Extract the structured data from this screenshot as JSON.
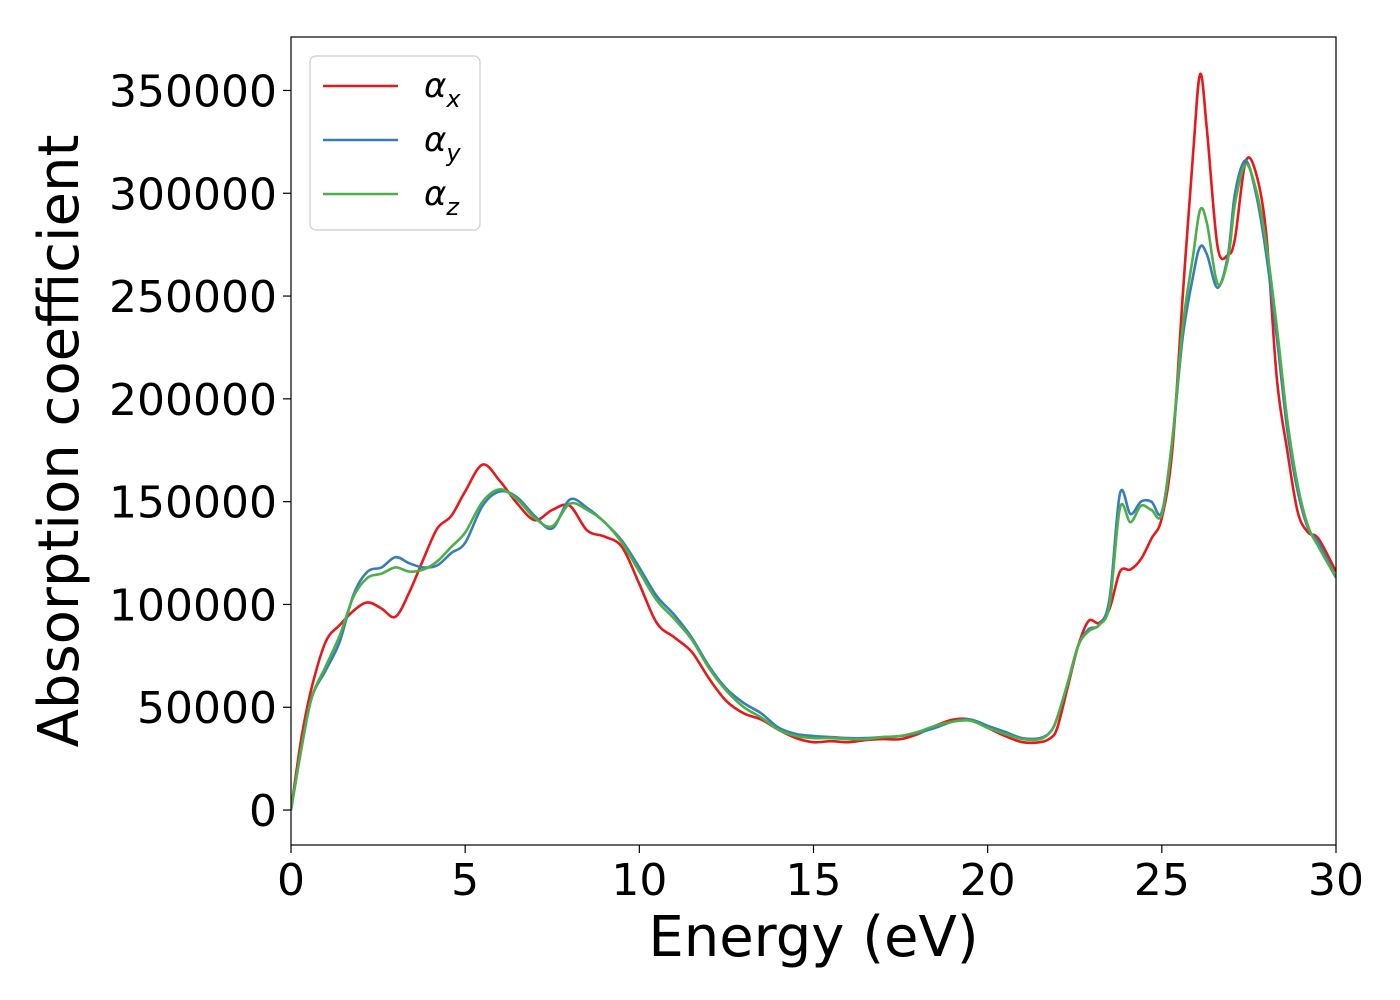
{
  "chart_data": {
    "type": "line",
    "xlabel": "Energy (eV)",
    "ylabel": "Absorption coefficient",
    "xlim": [
      0,
      30
    ],
    "ylim": [
      -17000,
      376000
    ],
    "xticks": [
      0,
      5,
      10,
      15,
      20,
      25,
      30
    ],
    "yticks": [
      0,
      50000,
      100000,
      150000,
      200000,
      250000,
      300000,
      350000
    ],
    "grid": false,
    "legend_position": "top-left",
    "x": [
      0,
      0.3,
      0.6,
      1.0,
      1.4,
      1.8,
      2.2,
      2.6,
      3.0,
      3.4,
      3.8,
      4.2,
      4.6,
      5.0,
      5.5,
      6.0,
      6.5,
      7.0,
      7.5,
      8.0,
      8.5,
      9.0,
      9.5,
      10.0,
      10.5,
      11.0,
      11.5,
      12.0,
      12.5,
      13.0,
      13.5,
      14.0,
      14.5,
      15.0,
      15.5,
      16.0,
      16.5,
      17.0,
      17.5,
      18.0,
      18.5,
      19.0,
      19.5,
      20.0,
      20.5,
      21.0,
      21.5,
      21.8,
      22.0,
      22.3,
      22.6,
      22.9,
      23.2,
      23.5,
      23.8,
      24.1,
      24.4,
      24.7,
      25.0,
      25.3,
      25.6,
      25.9,
      26.1,
      26.3,
      26.6,
      26.9,
      27.1,
      27.4,
      27.7,
      28.0,
      28.3,
      28.6,
      28.9,
      29.2,
      29.5,
      30.0
    ],
    "series": [
      {
        "name": "αx",
        "label_base": "α",
        "label_sub": "x",
        "color": "#e41a1c",
        "values": [
          0,
          35000,
          60000,
          82000,
          90000,
          97000,
          101000,
          98000,
          94000,
          106000,
          122000,
          137000,
          143000,
          155000,
          168000,
          160000,
          149000,
          141000,
          146000,
          148000,
          136000,
          133000,
          128000,
          110000,
          91000,
          84000,
          77000,
          64000,
          53000,
          47000,
          44000,
          39000,
          35000,
          33000,
          33500,
          33000,
          34000,
          34500,
          34500,
          37000,
          41000,
          44000,
          44000,
          40000,
          36000,
          33000,
          33000,
          35000,
          40000,
          60000,
          80000,
          92000,
          91000,
          98000,
          116000,
          117000,
          122000,
          132000,
          142000,
          175000,
          250000,
          320000,
          358000,
          330000,
          274000,
          270000,
          278000,
          315000,
          310000,
          280000,
          210000,
          175000,
          145000,
          135000,
          132000,
          116000
        ]
      },
      {
        "name": "αy",
        "label_base": "α",
        "label_sub": "y",
        "color": "#377eb8",
        "values": [
          0,
          30000,
          55000,
          68000,
          82000,
          105000,
          116000,
          118000,
          123000,
          120000,
          118000,
          119000,
          125000,
          130000,
          148000,
          155000,
          152000,
          143000,
          137000,
          151000,
          147000,
          140000,
          131000,
          118000,
          104000,
          95000,
          84000,
          70000,
          59000,
          52000,
          47000,
          40000,
          37000,
          36000,
          35500,
          35000,
          35000,
          35500,
          36000,
          37500,
          40000,
          43000,
          44000,
          41000,
          38000,
          35000,
          35000,
          38000,
          45000,
          62000,
          80000,
          88000,
          90000,
          103000,
          154000,
          144000,
          150000,
          150000,
          145000,
          180000,
          230000,
          260000,
          274000,
          270000,
          254000,
          270000,
          300000,
          316000,
          300000,
          270000,
          230000,
          185000,
          155000,
          137000,
          130000,
          113000
        ]
      },
      {
        "name": "αz",
        "label_base": "α",
        "label_sub": "z",
        "color": "#4daf4a",
        "values": [
          0,
          30000,
          55000,
          70000,
          85000,
          104000,
          113000,
          115000,
          118000,
          116000,
          117000,
          121000,
          128000,
          135000,
          150000,
          156000,
          151000,
          142000,
          138000,
          149000,
          146000,
          140000,
          130000,
          116000,
          102000,
          93000,
          83000,
          69000,
          58000,
          50000,
          45000,
          39000,
          36000,
          35000,
          35000,
          34500,
          34500,
          35500,
          36000,
          38000,
          41000,
          43000,
          43500,
          40000,
          37000,
          34500,
          34500,
          38000,
          45000,
          62000,
          80000,
          87000,
          90000,
          100000,
          147000,
          140000,
          148000,
          146000,
          144000,
          180000,
          235000,
          270000,
          292000,
          285000,
          256000,
          268000,
          295000,
          314000,
          302000,
          275000,
          235000,
          190000,
          158000,
          138000,
          128000,
          113000
        ]
      }
    ]
  }
}
